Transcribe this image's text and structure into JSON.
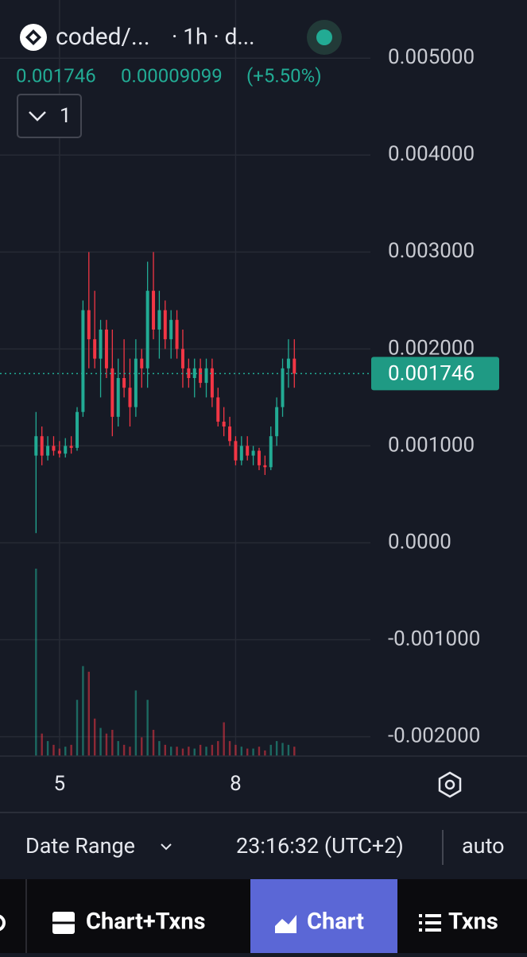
{
  "header": {
    "symbol": "coded/...",
    "interval": "· 1h · d...",
    "price": "0.001746",
    "change": "0.00009099",
    "change_pct": "(+5.50%)",
    "button": "1"
  },
  "chart_data": {
    "type": "candlestick",
    "x": [
      4.6,
      4.7,
      4.8,
      4.9,
      5.0,
      5.1,
      5.2,
      5.3,
      5.4,
      5.5,
      5.6,
      5.7,
      5.8,
      5.9,
      6.0,
      6.1,
      6.2,
      6.3,
      6.4,
      6.5,
      6.6,
      6.7,
      6.8,
      6.9,
      7.0,
      7.1,
      7.2,
      7.3,
      7.4,
      7.5,
      7.6,
      7.7,
      7.8,
      7.9,
      8.0,
      8.1,
      8.2,
      8.3,
      8.4,
      8.5,
      8.6,
      8.7,
      8.8,
      8.9,
      9.0
    ],
    "open": [
      0.0009,
      0.0011,
      0.0009,
      0.001,
      0.00095,
      0.00092,
      0.001,
      0.00098,
      0.00135,
      0.0024,
      0.0021,
      0.0019,
      0.0022,
      0.0018,
      0.0013,
      0.0017,
      0.0016,
      0.0014,
      0.0019,
      0.0018,
      0.0026,
      0.0022,
      0.0024,
      0.0021,
      0.0023,
      0.002,
      0.0018,
      0.0017,
      0.0018,
      0.00165,
      0.0018,
      0.0015,
      0.00125,
      0.0012,
      0.00105,
      0.00085,
      0.001,
      0.0009,
      0.00095,
      0.0008,
      0.00078,
      0.0011,
      0.0014,
      0.0018,
      0.0019
    ],
    "high": [
      0.00135,
      0.0012,
      0.0011,
      0.0011,
      0.00105,
      0.00108,
      0.0011,
      0.0014,
      0.0025,
      0.003,
      0.0026,
      0.0023,
      0.0023,
      0.0022,
      0.0019,
      0.0021,
      0.0019,
      0.0021,
      0.002,
      0.0029,
      0.003,
      0.0026,
      0.0025,
      0.0024,
      0.0024,
      0.0022,
      0.0019,
      0.0019,
      0.0019,
      0.0019,
      0.0019,
      0.0016,
      0.0014,
      0.0013,
      0.0011,
      0.0011,
      0.0011,
      0.001,
      0.00098,
      0.0009,
      0.0012,
      0.0015,
      0.0019,
      0.0021,
      0.0021
    ],
    "low": [
      0.0001,
      0.0008,
      0.00085,
      0.0009,
      0.00088,
      0.00088,
      0.00092,
      0.00095,
      0.0013,
      0.0018,
      0.0018,
      0.0015,
      0.0017,
      0.0011,
      0.0012,
      0.0015,
      0.0012,
      0.0013,
      0.0016,
      0.0016,
      0.0021,
      0.0019,
      0.002,
      0.0019,
      0.0019,
      0.0016,
      0.0016,
      0.0015,
      0.0016,
      0.0015,
      0.0014,
      0.0012,
      0.0011,
      0.001,
      0.0008,
      0.0008,
      0.00085,
      0.0008,
      0.00075,
      0.0007,
      0.00075,
      0.001,
      0.0013,
      0.0016,
      0.0016
    ],
    "close": [
      0.0011,
      0.0009,
      0.001,
      0.00095,
      0.00092,
      0.001,
      0.00098,
      0.00135,
      0.0024,
      0.0021,
      0.0019,
      0.0022,
      0.0018,
      0.0013,
      0.0017,
      0.0016,
      0.0014,
      0.0019,
      0.0018,
      0.0026,
      0.0022,
      0.0024,
      0.0021,
      0.0023,
      0.002,
      0.0018,
      0.0017,
      0.0018,
      0.00165,
      0.0018,
      0.0015,
      0.00125,
      0.0012,
      0.00105,
      0.00085,
      0.001,
      0.0009,
      0.00095,
      0.0008,
      0.00078,
      0.0011,
      0.0014,
      0.0018,
      0.0019,
      0.001746
    ],
    "volume": [
      100,
      12,
      8,
      6,
      4,
      5,
      6,
      30,
      48,
      45,
      20,
      15,
      12,
      14,
      8,
      6,
      5,
      35,
      10,
      30,
      14,
      8,
      6,
      5,
      5,
      4,
      5,
      4,
      6,
      5,
      6,
      8,
      18,
      8,
      6,
      5,
      4,
      4,
      5,
      3,
      6,
      8,
      7,
      6,
      5
    ],
    "up_color": "#22ab94",
    "down_color": "#f23645",
    "xlim": [
      4,
      10.35
    ],
    "xticks": [
      5,
      8
    ],
    "ylim": [
      -0.0022,
      0.0056
    ],
    "yticks": [
      {
        "value": 0.005,
        "label": "0.005000"
      },
      {
        "value": 0.004,
        "label": "0.004000"
      },
      {
        "value": 0.003,
        "label": "0.003000"
      },
      {
        "value": 0.002,
        "label": "0.002000"
      },
      {
        "value": 0.001,
        "label": "0.001000"
      },
      {
        "value": 0,
        "label": "0.0000"
      },
      {
        "value": -0.001,
        "label": "-0.001000"
      },
      {
        "value": -0.002,
        "label": "-0.002000"
      }
    ],
    "last_price": 0.001746,
    "grid": true
  },
  "footer": {
    "date_range": "Date Range",
    "time": "23:16:32 (UTC+2)",
    "scale": "auto"
  },
  "nav": [
    "Chart+Txns",
    "Chart",
    "Txns"
  ]
}
